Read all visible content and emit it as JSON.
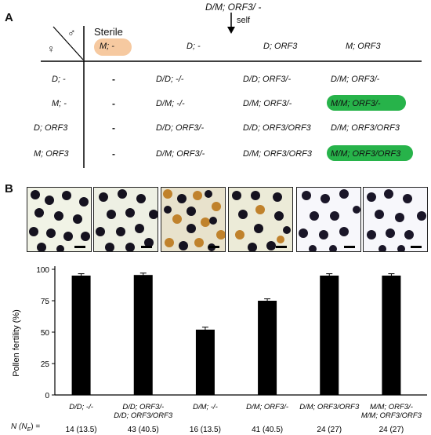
{
  "panel_a": {
    "label": "A",
    "cross": "D/M; ORF3/ -",
    "self_label": "self",
    "male_symbol": "♂",
    "female_symbol": "♀",
    "sterile_label": "Sterile",
    "col_headers": [
      "M; -",
      "D; -",
      "D; ORF3",
      "M; ORF3"
    ],
    "row_headers": [
      "D; -",
      "M; -",
      "D; ORF3",
      "M; ORF3"
    ],
    "rows": [
      [
        "-",
        "D/D; -/-",
        "D/D; ORF3/-",
        "D/M; ORF3/-"
      ],
      [
        "-",
        "D/M; -/-",
        "D/M; ORF3/-",
        "M/M; ORF3/-"
      ],
      [
        "-",
        "D/D; ORF3/-",
        "D/D; ORF3/ORF3",
        "D/M; ORF3/ORF3"
      ],
      [
        "-",
        "D/M; ORF3/-",
        "D/M; ORF3/ORF3",
        "M/M; ORF3/ORF3"
      ]
    ],
    "colors": {
      "sterile": "#f6c9a0",
      "highlight": "#27b34a"
    }
  },
  "panel_b": {
    "label": "B",
    "n_label": "N (N",
    "n_label_sub": "E",
    "n_label_end": ") =",
    "chart_data": {
      "type": "bar",
      "ylabel": "Pollen fertility (%)",
      "ylim": [
        0,
        100
      ],
      "yticks": [
        0,
        25,
        50,
        75,
        100
      ],
      "categories": [
        [
          "D/D; -/-"
        ],
        [
          "D/D; ORF3/-",
          "D/D; ORF3/ORF3"
        ],
        [
          "D/M; -/-"
        ],
        [
          "D/M; ORF3/-"
        ],
        [
          "D/M; ORF3/ORF3"
        ],
        [
          "M/M; ORF3/-",
          "M/M; ORF3/ORF3"
        ]
      ],
      "values": [
        95,
        95.5,
        52,
        75,
        95,
        95
      ],
      "errors": [
        1.5,
        1.5,
        2,
        1.5,
        1.5,
        1.5
      ],
      "n_values": [
        "14 (13.5)",
        "43 (40.5)",
        "16 (13.5)",
        "41 (40.5)",
        "24 (27)",
        "24 (27)"
      ]
    }
  }
}
